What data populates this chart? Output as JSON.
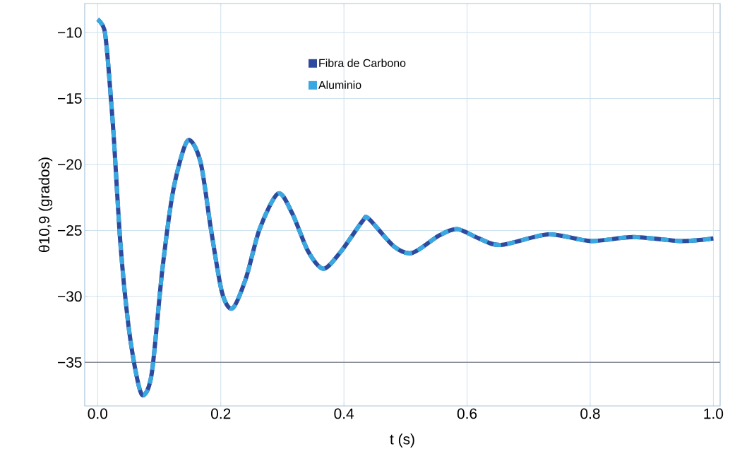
{
  "chart_data": {
    "type": "line",
    "xlabel": "t (s)",
    "ylabel": "θ10,9 (grados)",
    "x": [
      0,
      0.011,
      0.0175,
      0.026,
      0.037,
      0.05,
      0.064,
      0.074,
      0.088,
      0.105,
      0.123,
      0.146,
      0.167,
      0.184,
      0.202,
      0.219,
      0.241,
      0.263,
      0.293,
      0.316,
      0.342,
      0.367,
      0.395,
      0.43,
      0.44,
      0.481,
      0.511,
      0.554,
      0.584,
      0.619,
      0.655,
      0.732,
      0.801,
      0.87,
      0.947,
      1.0
    ],
    "series": [
      {
        "name": "Fibra de Carbono",
        "color": "#2e4a9e",
        "line_style": "solid",
        "values": [
          -9.0,
          -9.8,
          -12.6,
          -17.8,
          -26.0,
          -32.2,
          -36.2,
          -37.5,
          -35.8,
          -28.0,
          -21.9,
          -18.2,
          -19.8,
          -24.9,
          -29.7,
          -30.9,
          -28.6,
          -24.9,
          -22.2,
          -23.7,
          -26.6,
          -27.9,
          -26.6,
          -24.3,
          -24.1,
          -26.2,
          -26.7,
          -25.4,
          -24.9,
          -25.6,
          -26.1,
          -25.3,
          -25.8,
          -25.5,
          -25.8,
          -25.6
        ]
      },
      {
        "name": "Aluminio",
        "color": "#3aa8e0",
        "line_style": "dashed",
        "values": [
          -9.0,
          -9.8,
          -12.6,
          -17.8,
          -26.0,
          -32.2,
          -36.2,
          -37.5,
          -35.8,
          -28.0,
          -21.9,
          -18.2,
          -19.8,
          -24.9,
          -29.7,
          -30.9,
          -28.6,
          -24.9,
          -22.2,
          -23.7,
          -26.6,
          -27.9,
          -26.6,
          -24.3,
          -24.1,
          -26.2,
          -26.7,
          -25.4,
          -24.9,
          -25.6,
          -26.1,
          -25.3,
          -25.8,
          -25.5,
          -25.8,
          -25.6
        ]
      }
    ],
    "xlim": [
      -0.021,
      1.011
    ],
    "ylim": [
      -38.3,
      -7.8
    ],
    "xticks": [
      {
        "value": 0,
        "label": "0.0"
      },
      {
        "value": 0.2,
        "label": "0.2"
      },
      {
        "value": 0.4,
        "label": "0.4"
      },
      {
        "value": 0.6,
        "label": "0.6"
      },
      {
        "value": 0.8,
        "label": "0.8"
      },
      {
        "value": 1.0,
        "label": "1.0"
      }
    ],
    "yticks": [
      {
        "value": -35,
        "label": "−35"
      },
      {
        "value": -30,
        "label": "−30"
      },
      {
        "value": -25,
        "label": "−25"
      },
      {
        "value": -20,
        "label": "−20"
      },
      {
        "value": -15,
        "label": "−15"
      },
      {
        "value": -10,
        "label": "−10"
      }
    ],
    "ref_lines": [
      {
        "axis": "y",
        "value": -35,
        "color": "#8a8f99"
      }
    ],
    "grid": true,
    "legend": "top",
    "marker": "none"
  }
}
